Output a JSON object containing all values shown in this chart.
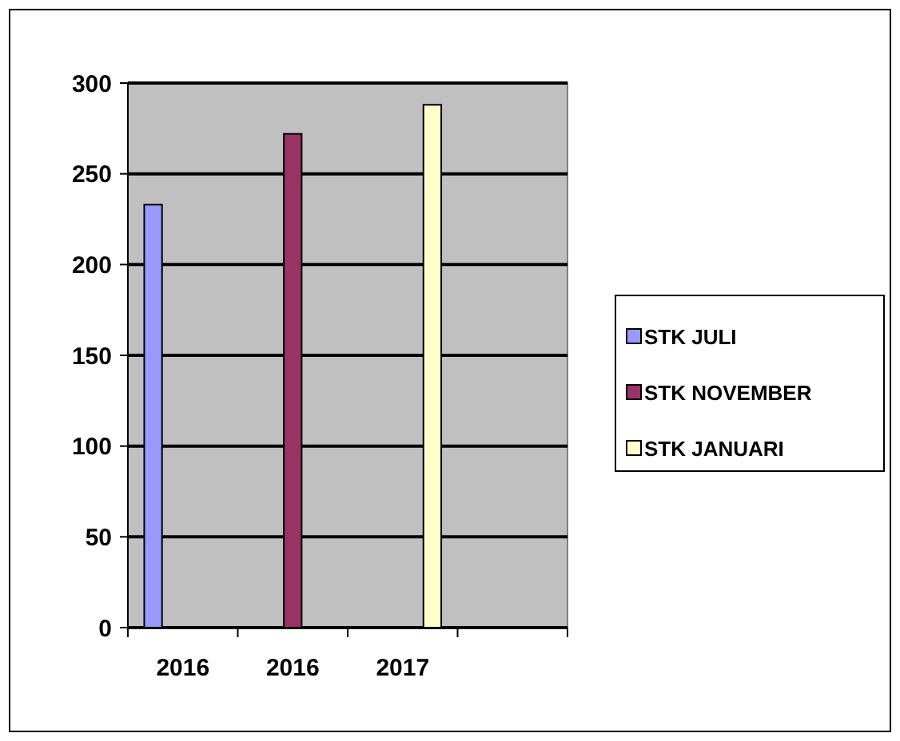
{
  "chart_data": {
    "type": "bar",
    "categories": [
      "2016",
      "2016",
      "2017",
      null
    ],
    "series": [
      {
        "name": "STK JULI",
        "color": "#9999ff",
        "values": [
          233,
          null,
          null,
          null
        ]
      },
      {
        "name": "STK NOVEMBER",
        "color": "#993366",
        "values": [
          null,
          272,
          null,
          null
        ]
      },
      {
        "name": "STK JANUARI",
        "color": "#ffffcc",
        "values": [
          null,
          null,
          288,
          null
        ]
      }
    ],
    "ylim": [
      0,
      300
    ],
    "yticks": [
      0,
      50,
      100,
      150,
      200,
      250,
      300
    ],
    "grid": "y",
    "legend": "right"
  }
}
